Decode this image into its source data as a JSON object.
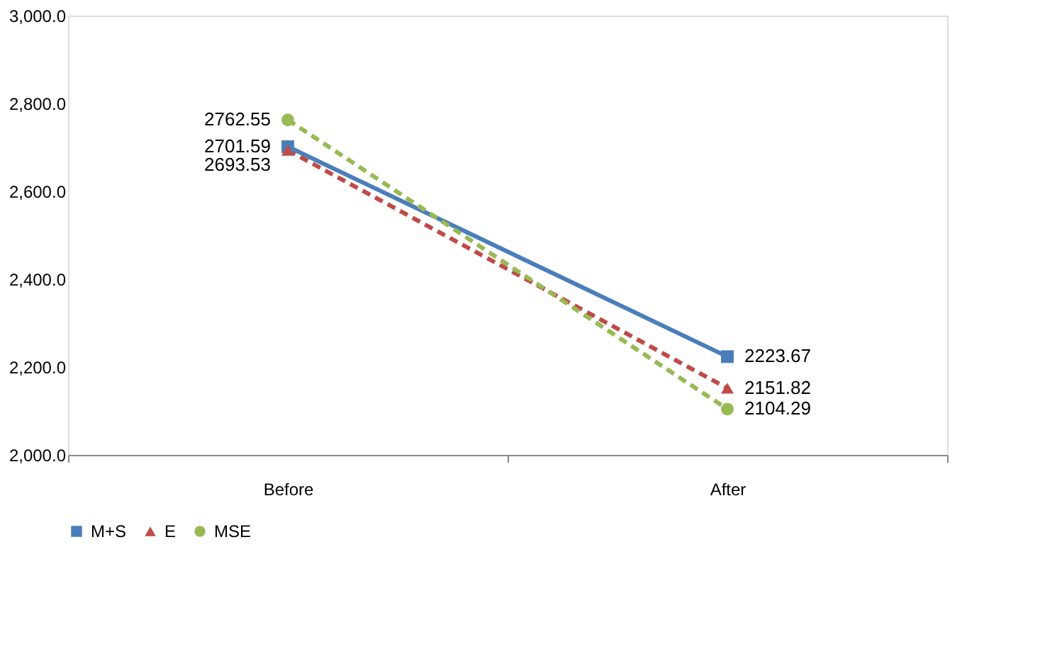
{
  "chart_data": {
    "type": "line",
    "categories": [
      "Before",
      "After"
    ],
    "series": [
      {
        "name": "M+S",
        "color": "#4a7ebb",
        "values": [
          2701.59,
          2223.67
        ],
        "marker": "square",
        "line_style": "solid"
      },
      {
        "name": "E",
        "color": "#be4b48",
        "values": [
          2693.53,
          2151.82
        ],
        "marker": "triangle",
        "line_style": "dashed"
      },
      {
        "name": "MSE",
        "color": "#98b954",
        "values": [
          2762.55,
          2104.29
        ],
        "marker": "circle",
        "line_style": "dashed"
      }
    ],
    "ylim": [
      2000,
      3000
    ],
    "yticks": [
      {
        "value": 2000,
        "label": "2,000.0"
      },
      {
        "value": 2200,
        "label": "2,200.0"
      },
      {
        "value": 2400,
        "label": "2,400.0"
      },
      {
        "value": 2600,
        "label": "2,600.0"
      },
      {
        "value": 2800,
        "label": "2,800.0"
      },
      {
        "value": 3000,
        "label": "3,000.0"
      }
    ],
    "data_labels": true,
    "grid": false,
    "legend": "bottom"
  }
}
